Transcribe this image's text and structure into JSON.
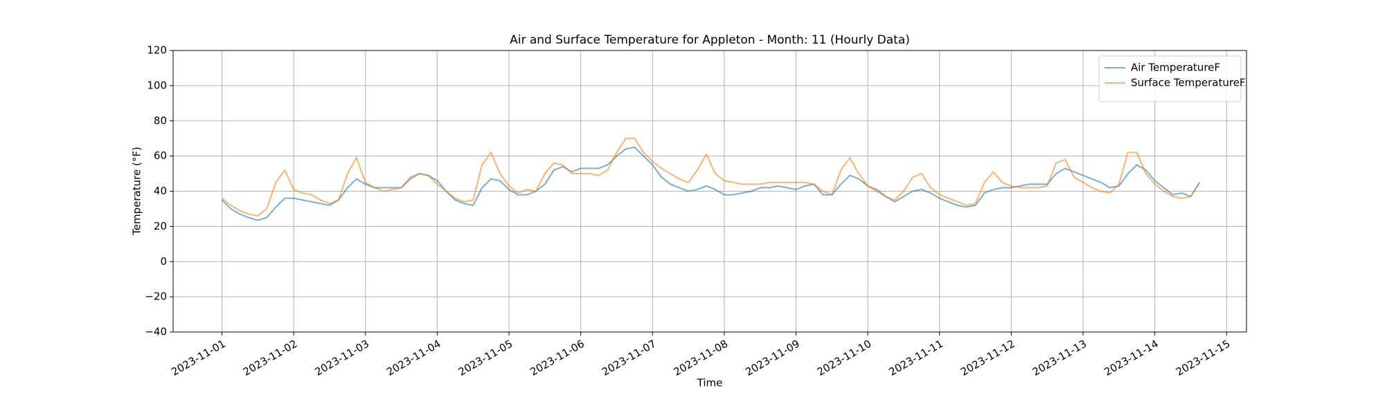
{
  "chart_data": {
    "type": "line",
    "title": "Air and Surface Temperature for Appleton - Month: 11 (Hourly Data)",
    "x_label": "Time",
    "y_label": "Temperature (°F)",
    "x": [
      "2023-11-01 00:00",
      "2023-11-01 03:00",
      "2023-11-01 06:00",
      "2023-11-01 09:00",
      "2023-11-01 12:00",
      "2023-11-01 15:00",
      "2023-11-01 18:00",
      "2023-11-01 21:00",
      "2023-11-02 00:00",
      "2023-11-02 03:00",
      "2023-11-02 06:00",
      "2023-11-02 09:00",
      "2023-11-02 12:00",
      "2023-11-02 15:00",
      "2023-11-02 18:00",
      "2023-11-02 21:00",
      "2023-11-03 00:00",
      "2023-11-03 03:00",
      "2023-11-03 06:00",
      "2023-11-03 09:00",
      "2023-11-03 12:00",
      "2023-11-03 15:00",
      "2023-11-03 18:00",
      "2023-11-03 21:00",
      "2023-11-04 00:00",
      "2023-11-04 03:00",
      "2023-11-04 06:00",
      "2023-11-04 09:00",
      "2023-11-04 12:00",
      "2023-11-04 15:00",
      "2023-11-04 18:00",
      "2023-11-04 21:00",
      "2023-11-05 00:00",
      "2023-11-05 03:00",
      "2023-11-05 06:00",
      "2023-11-05 09:00",
      "2023-11-05 12:00",
      "2023-11-05 15:00",
      "2023-11-05 18:00",
      "2023-11-05 21:00",
      "2023-11-06 00:00",
      "2023-11-06 03:00",
      "2023-11-06 06:00",
      "2023-11-06 09:00",
      "2023-11-06 12:00",
      "2023-11-06 15:00",
      "2023-11-06 18:00",
      "2023-11-06 21:00",
      "2023-11-07 00:00",
      "2023-11-07 03:00",
      "2023-11-07 06:00",
      "2023-11-07 09:00",
      "2023-11-07 12:00",
      "2023-11-07 15:00",
      "2023-11-07 18:00",
      "2023-11-07 21:00",
      "2023-11-08 00:00",
      "2023-11-08 03:00",
      "2023-11-08 06:00",
      "2023-11-08 09:00",
      "2023-11-08 12:00",
      "2023-11-08 15:00",
      "2023-11-08 18:00",
      "2023-11-08 21:00",
      "2023-11-09 00:00",
      "2023-11-09 03:00",
      "2023-11-09 06:00",
      "2023-11-09 09:00",
      "2023-11-09 12:00",
      "2023-11-09 15:00",
      "2023-11-09 18:00",
      "2023-11-09 21:00",
      "2023-11-10 00:00",
      "2023-11-10 03:00",
      "2023-11-10 06:00",
      "2023-11-10 09:00",
      "2023-11-10 12:00",
      "2023-11-10 15:00",
      "2023-11-10 18:00",
      "2023-11-10 21:00",
      "2023-11-11 00:00",
      "2023-11-11 03:00",
      "2023-11-11 06:00",
      "2023-11-11 09:00",
      "2023-11-11 12:00",
      "2023-11-11 15:00",
      "2023-11-11 18:00",
      "2023-11-11 21:00",
      "2023-11-12 00:00",
      "2023-11-12 03:00",
      "2023-11-12 06:00",
      "2023-11-12 09:00",
      "2023-11-12 12:00",
      "2023-11-12 15:00",
      "2023-11-12 18:00",
      "2023-11-12 21:00",
      "2023-11-13 00:00",
      "2023-11-13 03:00",
      "2023-11-13 06:00",
      "2023-11-13 09:00",
      "2023-11-13 12:00",
      "2023-11-13 15:00",
      "2023-11-13 18:00",
      "2023-11-13 21:00",
      "2023-11-14 00:00",
      "2023-11-14 03:00",
      "2023-11-14 06:00",
      "2023-11-14 09:00",
      "2023-11-14 12:00",
      "2023-11-14 15:00"
    ],
    "series": [
      {
        "name": "Air TemperatureF",
        "color": "#1f77b4",
        "values": [
          35,
          30,
          27,
          25,
          23.5,
          25,
          31,
          36,
          36,
          35,
          34,
          33,
          32,
          35,
          42,
          47,
          44,
          42,
          42,
          42,
          42,
          47,
          50,
          49,
          46,
          40,
          35,
          33,
          32,
          42,
          47,
          46,
          41,
          38,
          38,
          40,
          44,
          52,
          54,
          51,
          53,
          53,
          53,
          55,
          60,
          64,
          65,
          60,
          55,
          48,
          44,
          42,
          40,
          41,
          43,
          41,
          38,
          38,
          39,
          40,
          42,
          42,
          43,
          42,
          41,
          43,
          44,
          38,
          38,
          44,
          49,
          47,
          43,
          41,
          37,
          34,
          37,
          40,
          41,
          39,
          36,
          34,
          32,
          31,
          32,
          39,
          41,
          42,
          42,
          43,
          44,
          44,
          44,
          50,
          53,
          51,
          49,
          47,
          45,
          42,
          43,
          50,
          55,
          52,
          46,
          42,
          38,
          39,
          37,
          45
        ]
      },
      {
        "name": "Surface TemperatureF",
        "color": "#ff7f0e",
        "values": [
          36,
          32,
          29,
          27,
          26,
          30,
          45,
          52,
          41,
          39,
          38,
          35,
          33,
          35,
          50,
          59,
          45,
          42,
          40,
          41,
          42,
          48,
          50,
          49,
          44,
          40,
          36,
          34,
          35,
          55,
          62,
          50,
          43,
          39,
          41,
          40,
          50,
          56,
          55,
          50,
          50,
          50,
          49,
          52,
          62,
          70,
          70,
          62,
          57,
          53,
          50,
          47,
          45,
          52,
          61,
          50,
          46,
          45,
          44,
          44,
          44,
          45,
          45,
          45,
          45,
          45,
          44,
          40,
          38,
          52,
          59,
          50,
          43,
          40,
          37,
          35,
          40,
          48,
          50,
          42,
          38,
          36,
          34,
          32,
          33,
          45,
          51,
          45,
          43,
          42,
          42,
          42,
          43,
          56,
          58,
          48,
          45,
          42,
          40,
          39,
          44,
          62,
          62,
          50,
          44,
          40,
          37,
          36,
          37,
          45
        ]
      }
    ],
    "xlim": [
      "2023-10-31 07:40",
      "2023-11-15 06:40"
    ],
    "xticks": [
      "2023-11-01",
      "2023-11-02",
      "2023-11-03",
      "2023-11-04",
      "2023-11-05",
      "2023-11-06",
      "2023-11-07",
      "2023-11-08",
      "2023-11-09",
      "2023-11-10",
      "2023-11-11",
      "2023-11-12",
      "2023-11-13",
      "2023-11-14",
      "2023-11-15"
    ],
    "ylim": [
      -40,
      120
    ],
    "yticks": [
      {
        "value": -40,
        "label": "−40"
      },
      {
        "value": -20,
        "label": "−20"
      },
      0,
      20,
      40,
      60,
      80,
      100,
      120
    ],
    "grid": true,
    "legend": "upper right"
  }
}
